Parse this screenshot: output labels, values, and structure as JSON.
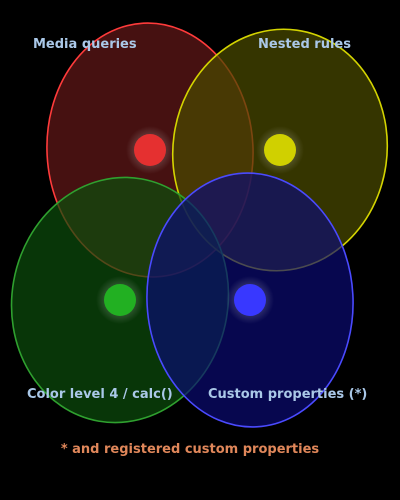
{
  "diagram": {
    "type": "venn",
    "sets": [
      {
        "label": "Media queries",
        "fill": "#5a1616",
        "stroke": "#ff3b3b",
        "dot": "#e53030"
      },
      {
        "label": "Nested rules",
        "fill": "#4a4a00",
        "stroke": "#d4d400",
        "dot": "#d0d000"
      },
      {
        "label": "Color level 4 / calc()",
        "fill": "#0b4d0b",
        "stroke": "#2fa02f",
        "dot": "#22b022"
      },
      {
        "label": "Custom properties (*)",
        "fill": "#0a0a75",
        "stroke": "#4a4aff",
        "dot": "#3838ff"
      }
    ],
    "label_color": "#aac8e8",
    "footnote": "* and registered custom properties",
    "footnote_color": "#e0875a"
  }
}
